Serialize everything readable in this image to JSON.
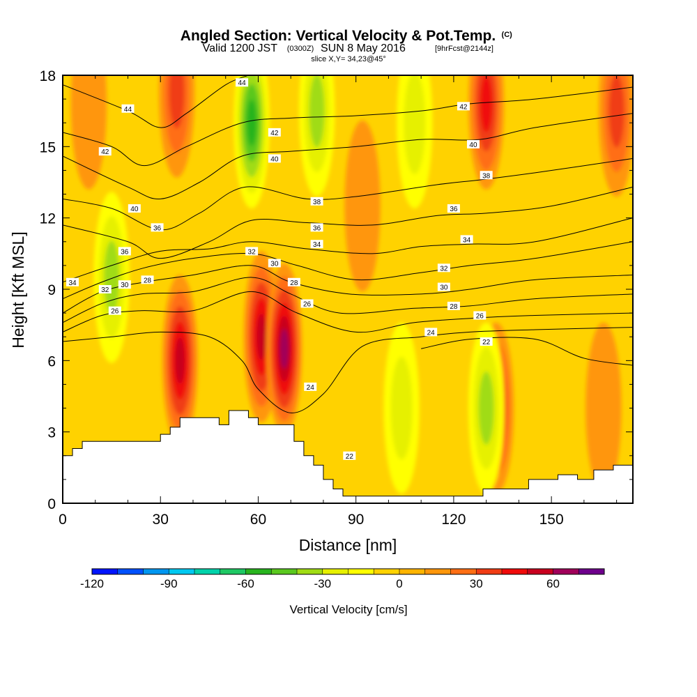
{
  "header": {
    "title": "Angled Section: Vertical Velocity & Pot.Temp.",
    "title_tag": "(C)",
    "sub_a": "Valid 1200 JST",
    "sub_b": "(0300Z)",
    "sub_c": "SUN 8 May 2016",
    "sub_d": "[9hrFcst@2144z]",
    "slice": "slice X,Y= 34,23@45°"
  },
  "chart_data": {
    "type": "heatmap",
    "title": "Angled Section: Vertical Velocity & Pot.Temp.",
    "xlabel": "Distance [nm]",
    "ylabel": "Height [Kft MSL]",
    "xlim": [
      0,
      175
    ],
    "ylim": [
      0,
      18
    ],
    "x_ticks": [
      0,
      30,
      60,
      90,
      120,
      150
    ],
    "y_ticks": [
      0,
      3,
      6,
      9,
      12,
      15,
      18
    ],
    "grid": false,
    "colorbar": {
      "title": "Vertical Velocity [cm/s]",
      "ticks": [
        -120,
        -90,
        -60,
        -30,
        0,
        30,
        60
      ],
      "range": [
        -120,
        80
      ],
      "colors": [
        "#0014ff",
        "#0050ff",
        "#0096f0",
        "#00c8f0",
        "#00d2aa",
        "#1ec864",
        "#28b41e",
        "#5ac81e",
        "#a0dc14",
        "#e6f000",
        "#ffff00",
        "#ffd200",
        "#ffb400",
        "#ff960a",
        "#ff6e14",
        "#f03c14",
        "#f00a0a",
        "#c8001e",
        "#a0005a",
        "#6e008c"
      ]
    },
    "velocity_features": [
      {
        "x": 8,
        "y": 16.8,
        "value": 5
      },
      {
        "x": 35,
        "y": 17.3,
        "value": 28
      },
      {
        "x": 58,
        "y": 16.0,
        "value": -48
      },
      {
        "x": 78,
        "y": 16.5,
        "value": -32
      },
      {
        "x": 108,
        "y": 16.0,
        "value": -22
      },
      {
        "x": 130,
        "y": 16.8,
        "value": 38
      },
      {
        "x": 170,
        "y": 16.5,
        "value": 28
      },
      {
        "x": 15,
        "y": 9.5,
        "value": -30
      },
      {
        "x": 36,
        "y": 6.0,
        "value": 45
      },
      {
        "x": 61,
        "y": 7.0,
        "value": 45
      },
      {
        "x": 68,
        "y": 6.5,
        "value": 55
      },
      {
        "x": 92,
        "y": 12.5,
        "value": 12
      },
      {
        "x": 104,
        "y": 4.0,
        "value": -22
      },
      {
        "x": 133,
        "y": 4.0,
        "value": 40
      },
      {
        "x": 130,
        "y": 4.0,
        "value": -25
      },
      {
        "x": 166,
        "y": 4.0,
        "value": 8
      }
    ],
    "terrain": [
      [
        0,
        2.0
      ],
      [
        3,
        2.0
      ],
      [
        3,
        2.3
      ],
      [
        6,
        2.3
      ],
      [
        6,
        2.6
      ],
      [
        30,
        2.6
      ],
      [
        30,
        2.9
      ],
      [
        33,
        2.9
      ],
      [
        33,
        3.2
      ],
      [
        36,
        3.2
      ],
      [
        36,
        3.6
      ],
      [
        48,
        3.6
      ],
      [
        48,
        3.3
      ],
      [
        51,
        3.3
      ],
      [
        51,
        3.9
      ],
      [
        57,
        3.9
      ],
      [
        57,
        3.6
      ],
      [
        60,
        3.6
      ],
      [
        60,
        3.3
      ],
      [
        71,
        3.3
      ],
      [
        71,
        2.6
      ],
      [
        74,
        2.6
      ],
      [
        74,
        2.0
      ],
      [
        77,
        2.0
      ],
      [
        77,
        1.6
      ],
      [
        80,
        1.6
      ],
      [
        80,
        1.0
      ],
      [
        83,
        1.0
      ],
      [
        83,
        0.6
      ],
      [
        86,
        0.6
      ],
      [
        86,
        0.3
      ],
      [
        129,
        0.3
      ],
      [
        129,
        0.6
      ],
      [
        143,
        0.6
      ],
      [
        143,
        1.0
      ],
      [
        152,
        1.0
      ],
      [
        152,
        1.2
      ],
      [
        158,
        1.2
      ],
      [
        158,
        1.0
      ],
      [
        163,
        1.0
      ],
      [
        163,
        1.4
      ],
      [
        169,
        1.4
      ],
      [
        169,
        1.6
      ],
      [
        175,
        1.6
      ]
    ],
    "theta_contours": [
      {
        "value": 44,
        "points": [
          [
            0,
            17.6
          ],
          [
            20,
            16.5
          ],
          [
            30,
            15.8
          ],
          [
            38,
            16.4
          ],
          [
            50,
            17.6
          ],
          [
            57,
            18.0
          ]
        ]
      },
      {
        "value": 42,
        "points": [
          [
            0,
            15.6
          ],
          [
            15,
            15.0
          ],
          [
            25,
            14.2
          ],
          [
            38,
            15.0
          ],
          [
            55,
            16.0
          ],
          [
            70,
            16.2
          ],
          [
            90,
            16.3
          ],
          [
            110,
            16.5
          ],
          [
            125,
            16.8
          ],
          [
            145,
            17.0
          ],
          [
            175,
            17.5
          ]
        ]
      },
      {
        "value": 40,
        "points": [
          [
            0,
            14.6
          ],
          [
            20,
            13.3
          ],
          [
            30,
            12.8
          ],
          [
            42,
            13.5
          ],
          [
            55,
            14.6
          ],
          [
            70,
            14.8
          ],
          [
            90,
            15.0
          ],
          [
            110,
            15.3
          ],
          [
            128,
            15.3
          ],
          [
            145,
            15.8
          ],
          [
            175,
            16.4
          ]
        ]
      },
      {
        "value": 38,
        "points": [
          [
            0,
            12.8
          ],
          [
            15,
            12.4
          ],
          [
            30,
            11.5
          ],
          [
            42,
            12.2
          ],
          [
            56,
            13.3
          ],
          [
            75,
            12.8
          ],
          [
            90,
            12.9
          ],
          [
            115,
            13.4
          ],
          [
            128,
            13.6
          ],
          [
            145,
            13.9
          ],
          [
            175,
            14.5
          ]
        ]
      },
      {
        "value": 36,
        "points": [
          [
            0,
            11.7
          ],
          [
            20,
            11.0
          ],
          [
            30,
            10.3
          ],
          [
            45,
            11.0
          ],
          [
            58,
            11.9
          ],
          [
            75,
            11.8
          ],
          [
            95,
            11.7
          ],
          [
            115,
            12.1
          ],
          [
            130,
            12.2
          ],
          [
            150,
            12.5
          ],
          [
            175,
            13.3
          ]
        ]
      },
      {
        "value": 34,
        "points": [
          [
            0,
            9.3
          ],
          [
            15,
            10.0
          ],
          [
            30,
            10.6
          ],
          [
            45,
            10.7
          ],
          [
            58,
            11.0
          ],
          [
            75,
            10.7
          ],
          [
            95,
            10.5
          ],
          [
            110,
            10.8
          ],
          [
            125,
            10.9
          ],
          [
            145,
            11.0
          ],
          [
            175,
            12.0
          ]
        ]
      },
      {
        "value": 32,
        "points": [
          [
            0,
            8.6
          ],
          [
            12,
            9.3
          ],
          [
            25,
            9.9
          ],
          [
            40,
            10.3
          ],
          [
            58,
            10.5
          ],
          [
            72,
            10.0
          ],
          [
            90,
            9.4
          ],
          [
            110,
            9.7
          ],
          [
            125,
            10.0
          ],
          [
            145,
            10.3
          ],
          [
            175,
            11.0
          ]
        ]
      },
      {
        "value": 30,
        "points": [
          [
            0,
            8.0
          ],
          [
            12,
            8.9
          ],
          [
            25,
            9.3
          ],
          [
            40,
            9.6
          ],
          [
            58,
            10.0
          ],
          [
            70,
            9.3
          ],
          [
            88,
            8.8
          ],
          [
            110,
            8.8
          ],
          [
            125,
            9.0
          ],
          [
            145,
            9.4
          ],
          [
            175,
            9.6
          ]
        ]
      },
      {
        "value": 28,
        "points": [
          [
            0,
            7.6
          ],
          [
            12,
            8.4
          ],
          [
            24,
            8.8
          ],
          [
            40,
            8.9
          ],
          [
            58,
            9.5
          ],
          [
            70,
            8.8
          ],
          [
            85,
            8.0
          ],
          [
            108,
            8.2
          ],
          [
            125,
            8.3
          ],
          [
            145,
            8.6
          ],
          [
            175,
            8.8
          ]
        ]
      },
      {
        "value": 26,
        "points": [
          [
            0,
            7.2
          ],
          [
            12,
            7.9
          ],
          [
            24,
            8.1
          ],
          [
            40,
            8.1
          ],
          [
            58,
            8.9
          ],
          [
            72,
            8.0
          ],
          [
            90,
            7.2
          ],
          [
            108,
            7.6
          ],
          [
            128,
            7.8
          ],
          [
            145,
            7.9
          ],
          [
            175,
            8.0
          ]
        ]
      },
      {
        "value": 24,
        "points": [
          [
            0,
            6.8
          ],
          [
            15,
            7.0
          ],
          [
            30,
            7.2
          ],
          [
            45,
            7.0
          ],
          [
            55,
            6.0
          ],
          [
            60,
            4.8
          ],
          [
            70,
            3.8
          ],
          [
            80,
            4.6
          ],
          [
            92,
            6.6
          ],
          [
            110,
            7.0
          ],
          [
            125,
            7.2
          ],
          [
            145,
            7.3
          ],
          [
            175,
            7.4
          ]
        ]
      },
      {
        "value": 22,
        "points": [
          [
            110,
            6.5
          ],
          [
            125,
            6.9
          ],
          [
            145,
            6.9
          ],
          [
            160,
            6.1
          ],
          [
            175,
            5.8
          ]
        ]
      }
    ],
    "contour_labels": [
      {
        "x": 55,
        "y": 17.7,
        "text": "44"
      },
      {
        "x": 20,
        "y": 16.6,
        "text": "44"
      },
      {
        "x": 123,
        "y": 16.7,
        "text": "42"
      },
      {
        "x": 65,
        "y": 15.6,
        "text": "42"
      },
      {
        "x": 13,
        "y": 14.8,
        "text": "42"
      },
      {
        "x": 126,
        "y": 15.1,
        "text": "40"
      },
      {
        "x": 65,
        "y": 14.5,
        "text": "40"
      },
      {
        "x": 130,
        "y": 13.8,
        "text": "38"
      },
      {
        "x": 78,
        "y": 12.7,
        "text": "38"
      },
      {
        "x": 22,
        "y": 12.4,
        "text": "40"
      },
      {
        "x": 120,
        "y": 12.4,
        "text": "36"
      },
      {
        "x": 29,
        "y": 11.6,
        "text": "36"
      },
      {
        "x": 78,
        "y": 11.6,
        "text": "36"
      },
      {
        "x": 124,
        "y": 11.1,
        "text": "34"
      },
      {
        "x": 78,
        "y": 10.9,
        "text": "34"
      },
      {
        "x": 19,
        "y": 10.6,
        "text": "36"
      },
      {
        "x": 58,
        "y": 10.6,
        "text": "32"
      },
      {
        "x": 65,
        "y": 10.1,
        "text": "30"
      },
      {
        "x": 117,
        "y": 9.9,
        "text": "32"
      },
      {
        "x": 3,
        "y": 9.3,
        "text": "34"
      },
      {
        "x": 26,
        "y": 9.4,
        "text": "28"
      },
      {
        "x": 19,
        "y": 9.2,
        "text": "30"
      },
      {
        "x": 13,
        "y": 9.0,
        "text": "32"
      },
      {
        "x": 71,
        "y": 9.3,
        "text": "28"
      },
      {
        "x": 117,
        "y": 9.1,
        "text": "30"
      },
      {
        "x": 75,
        "y": 8.4,
        "text": "26"
      },
      {
        "x": 16,
        "y": 8.1,
        "text": "26"
      },
      {
        "x": 120,
        "y": 8.3,
        "text": "28"
      },
      {
        "x": 128,
        "y": 7.9,
        "text": "26"
      },
      {
        "x": 113,
        "y": 7.2,
        "text": "24"
      },
      {
        "x": 130,
        "y": 6.8,
        "text": "22"
      },
      {
        "x": 76,
        "y": 4.9,
        "text": "24"
      },
      {
        "x": 88,
        "y": 2.0,
        "text": "22"
      }
    ]
  }
}
